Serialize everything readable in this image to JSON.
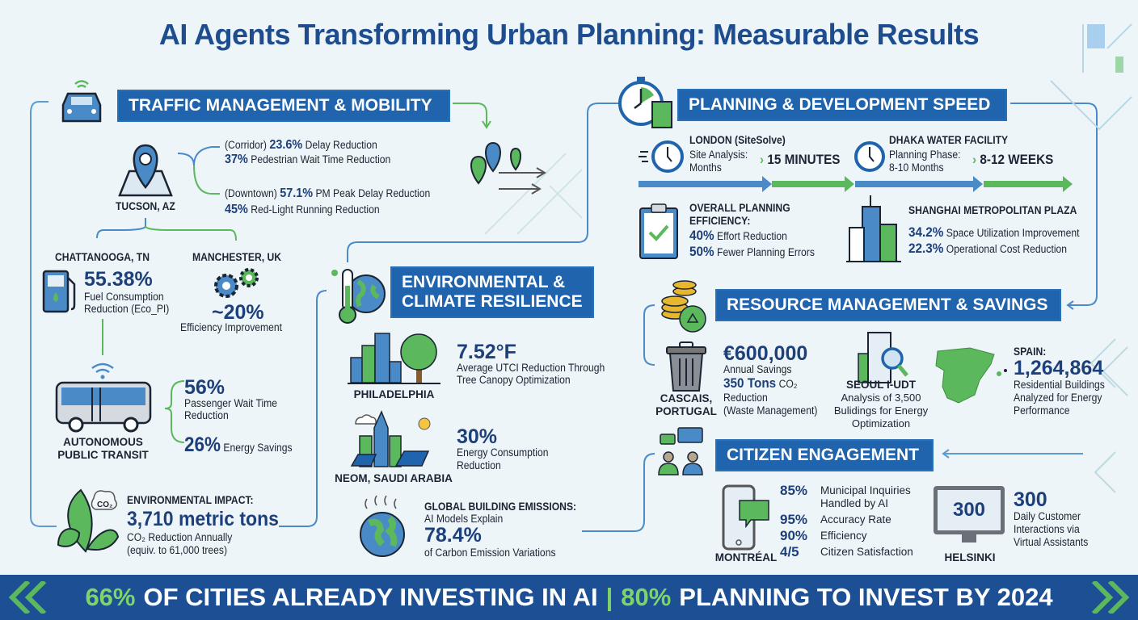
{
  "title": "AI Agents Transforming Urban Planning: Measurable Results",
  "colors": {
    "banner": "#1f64ad",
    "number": "#1d3f7a",
    "accent_green": "#4caf50",
    "footer": "#1c4f94",
    "footer_highlight": "#7ed36b"
  },
  "traffic": {
    "banner": "TRAFFIC MANAGEMENT & MOBILITY",
    "tucson": {
      "label": "TUCSON, AZ",
      "rows": [
        {
          "pre": "(Corridor)",
          "value": "23.6%",
          "text": "Delay Reduction"
        },
        {
          "pre": "",
          "value": "37%",
          "text": "Pedestrian Wait Time Reduction"
        },
        {
          "pre": "(Downtown)",
          "value": "57.1%",
          "text": "PM Peak Delay Reduction"
        },
        {
          "pre": "",
          "value": "45%",
          "text": "Red-Light Running Reduction"
        }
      ]
    },
    "chattanooga": {
      "label": "CHATTANOOGA, TN",
      "value": "55.38%",
      "line1": "Fuel Consumption",
      "line2": "Reduction (Eco_PI)"
    },
    "manchester": {
      "label": "MANCHESTER, UK",
      "value": "~20%",
      "text": "Efficiency Improvement"
    },
    "transit": {
      "label1": "AUTONOMOUS",
      "label2": "PUBLIC TRANSIT",
      "v1": "56%",
      "t1a": "Passenger Wait Time",
      "t1b": "Reduction",
      "v2": "26%",
      "t2": "Energy Savings"
    },
    "impact": {
      "heading": "ENVIRONMENTAL IMPACT:",
      "value": "3,710 metric tons",
      "line1": "CO₂ Reduction Annually",
      "line2": "(equiv. to 61,000 trees)",
      "co2_icon": "CO₂"
    }
  },
  "environment": {
    "banner1": "ENVIRONMENTAL &",
    "banner2": "CLIMATE RESILIENCE",
    "philadelphia": {
      "label": "PHILADELPHIA",
      "value": "7.52°F",
      "line1": "Average UTCI Reduction Through",
      "line2": "Tree Canopy Optimization"
    },
    "neom": {
      "label": "NEOM, SAUDI ARABIA",
      "value": "30%",
      "line1": "Energy Consumption",
      "line2": "Reduction"
    },
    "global": {
      "heading": "GLOBAL BUILDING EMISSIONS:",
      "line1": "AI Models Explain",
      "value": "78.4%",
      "line2": "of Carbon Emission Variations"
    }
  },
  "planning": {
    "banner": "PLANNING & DEVELOPMENT SPEED",
    "london": {
      "label": "LONDON (SiteSolve)",
      "line1": "Site Analysis:",
      "line2": "Months",
      "result": "15 MINUTES"
    },
    "dhaka": {
      "label": "DHAKA WATER FACILITY",
      "line1": "Planning Phase:",
      "line2": "8-10 Months",
      "result": "8-12 WEEKS"
    },
    "overall": {
      "h1": "OVERALL PLANNING",
      "h2": "EFFICIENCY:",
      "v1": "40%",
      "t1": "Effort Reduction",
      "v2": "50%",
      "t2": "Fewer Planning Errors"
    },
    "shanghai": {
      "label": "SHANGHAI METROPOLITAN PLAZA",
      "v1": "34.2%",
      "t1": "Space Utilization Improvement",
      "v2": "22.3%",
      "t2": "Operational Cost Reduction"
    }
  },
  "resource": {
    "banner": "RESOURCE MANAGEMENT & SAVINGS",
    "cascais": {
      "label1": "CASCAIS,",
      "label2": "PORTUGAL",
      "value": "€600,000",
      "t1": "Annual Savings",
      "v2": "350 Tons",
      "t2": "CO₂",
      "t3": "Reduction",
      "t4": "(Waste Management)"
    },
    "seoul": {
      "label": "SEOUL I-UDT",
      "l1": "Analysis of 3,500",
      "l2": "Bulidings for Energy",
      "l3": "Optimization"
    },
    "spain": {
      "label": "SPAIN:",
      "value": "1,264,864",
      "l1": "Residential Buildings",
      "l2": "Analyzed for Energy",
      "l3": "Performance"
    }
  },
  "citizen": {
    "banner": "CITIZEN ENGAGEMENT",
    "montreal": {
      "label": "MONTRÉAL",
      "stats": [
        {
          "value": "85%",
          "text": "Municipal Inquiries",
          "text2": "Handled by AI"
        },
        {
          "value": "95%",
          "text": "Accuracy Rate"
        },
        {
          "value": "90%",
          "text": "Efficiency"
        },
        {
          "value": "4/5",
          "text": "Citizen Satisfaction"
        }
      ]
    },
    "helsinki": {
      "label": "HELSINKI",
      "screen": "300",
      "value": "300",
      "l1": "Daily Customer",
      "l2": "Interactions via",
      "l3": "Virtual Assistants"
    }
  },
  "footer": {
    "v1": "66%",
    "t1": "OF CITIES ALREADY INVESTING IN AI",
    "sep": "|",
    "v2": "80%",
    "t2": "PLANNING TO INVEST BY 2024"
  }
}
